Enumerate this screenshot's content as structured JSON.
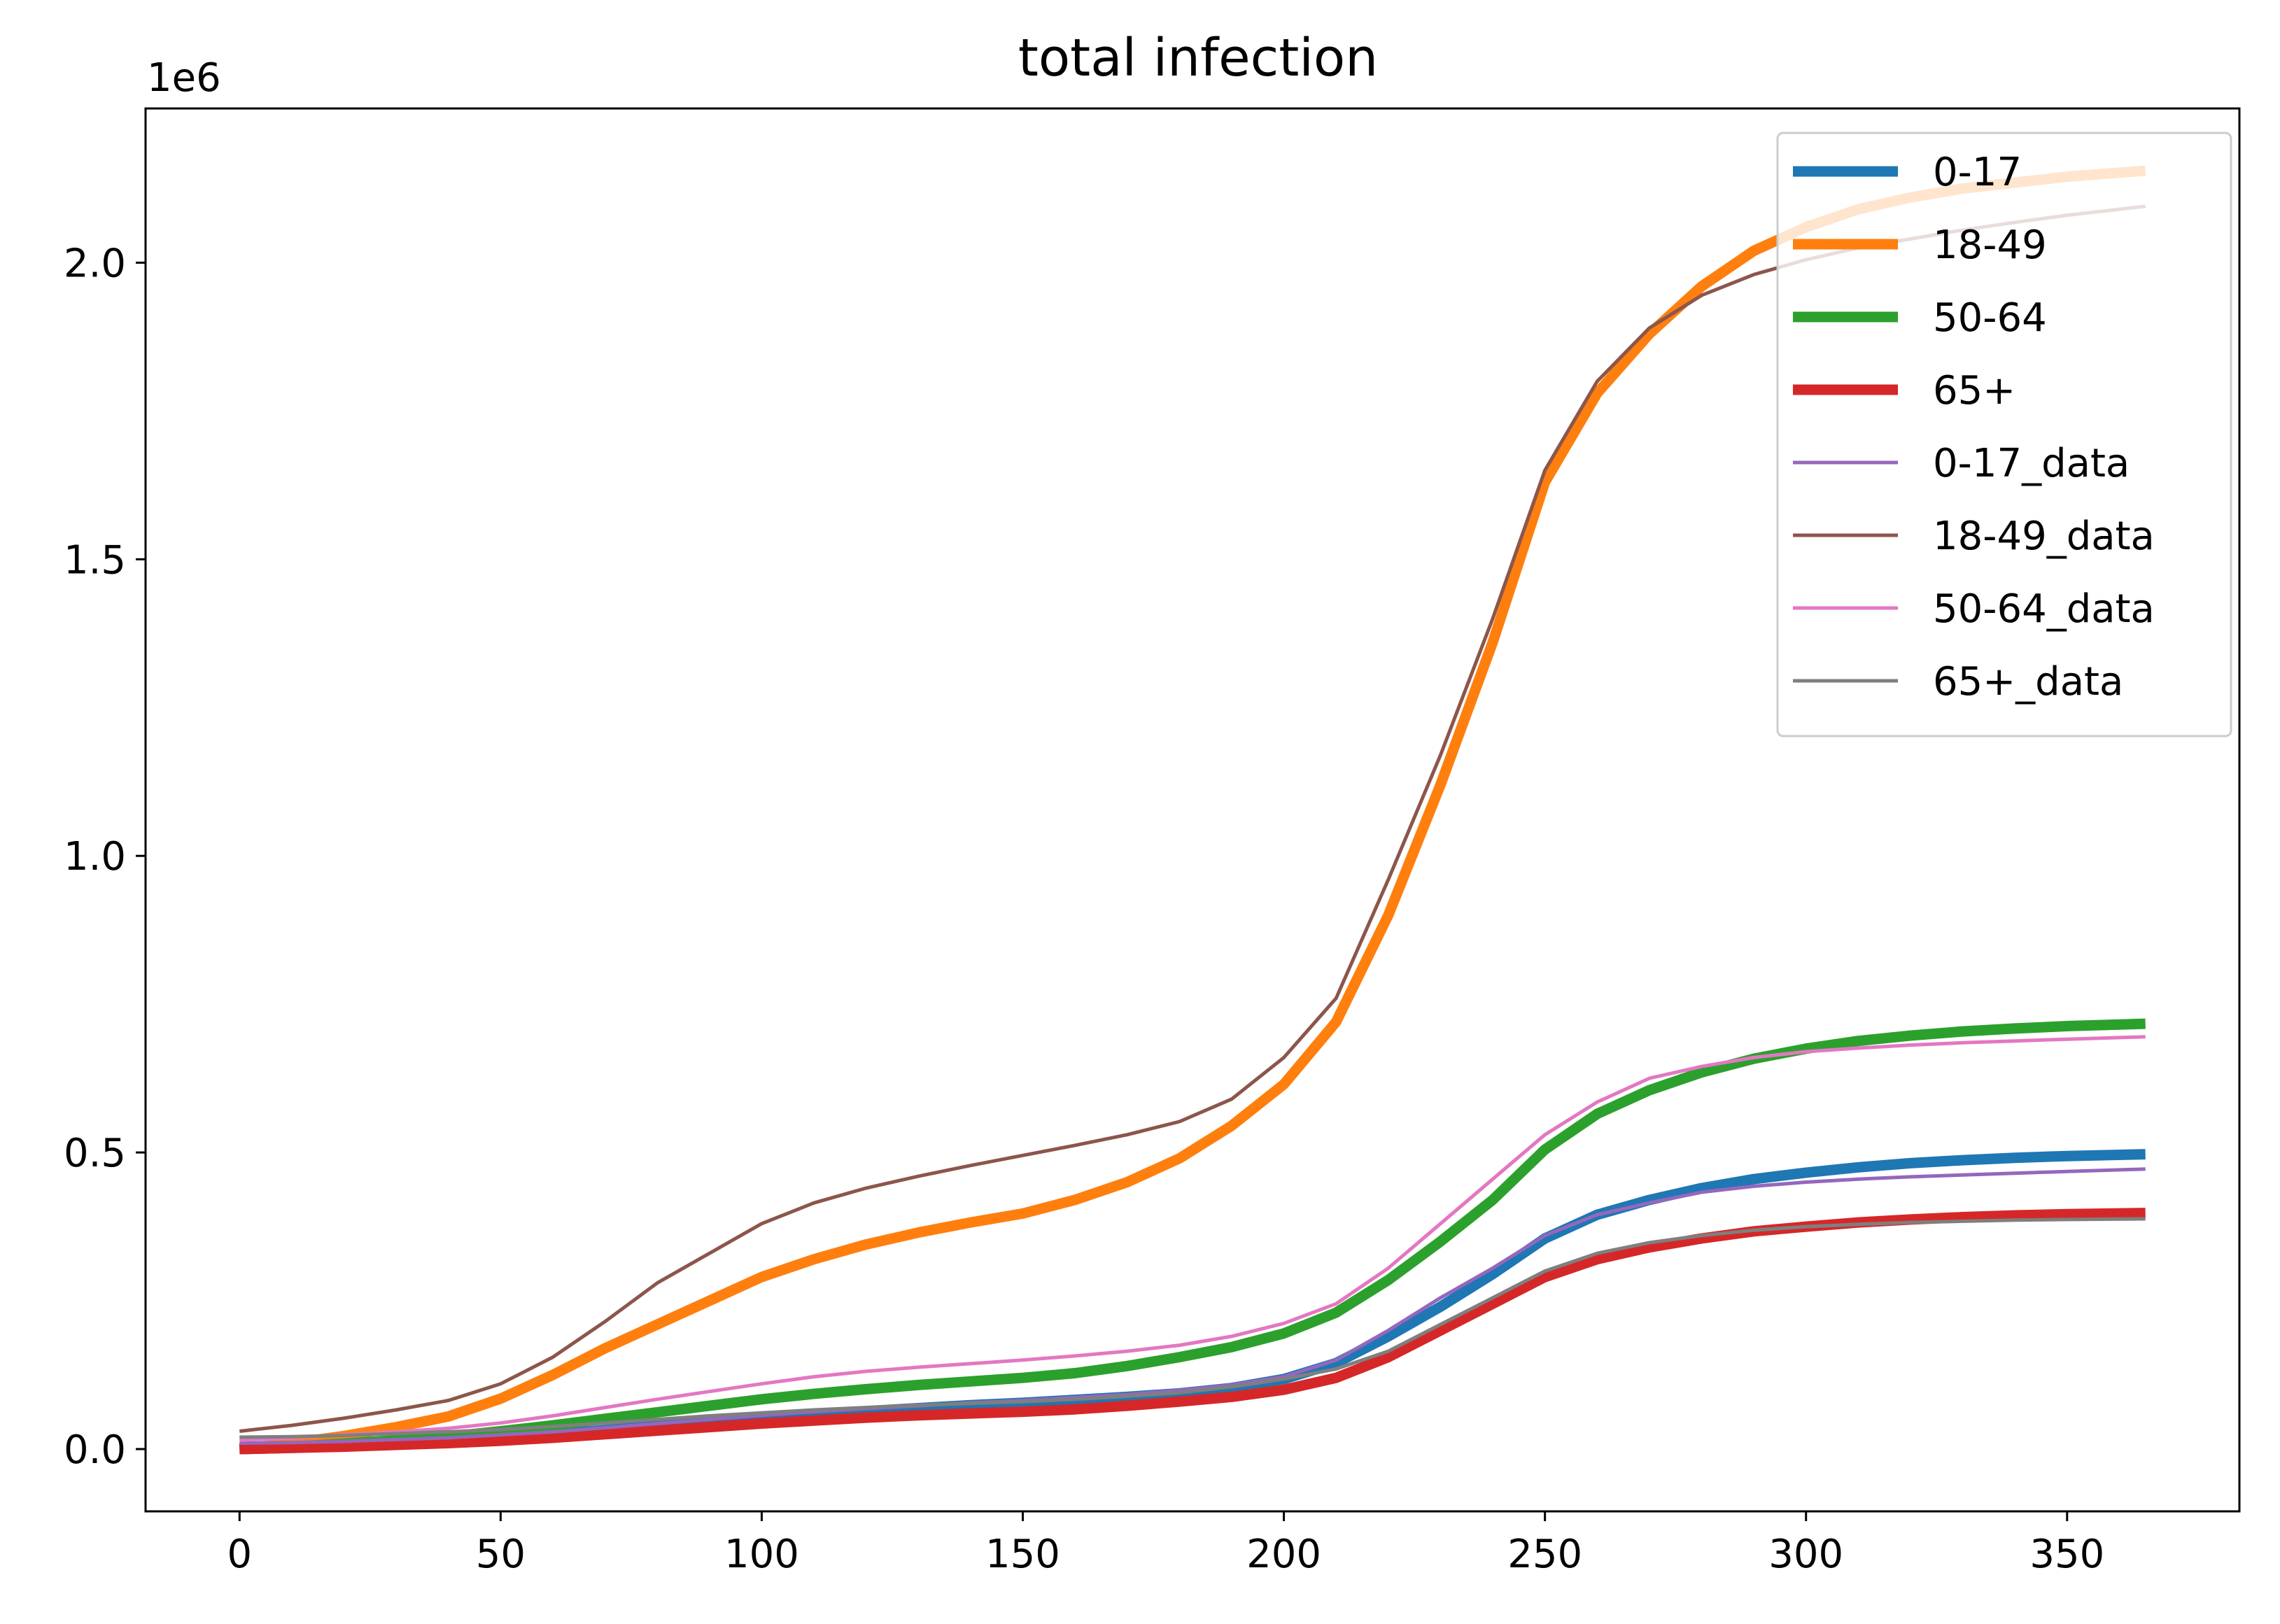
{
  "chart_data": {
    "type": "line",
    "title": "total infection",
    "xlabel": "",
    "ylabel": "",
    "y_scale_label": "1e6",
    "xlim": [
      -18,
      383
    ],
    "ylim": [
      -105000,
      2260000
    ],
    "x_ticks": [
      0,
      50,
      100,
      150,
      200,
      250,
      300,
      350
    ],
    "x_tick_labels": [
      "0",
      "50",
      "100",
      "150",
      "200",
      "250",
      "300",
      "350"
    ],
    "y_ticks": [
      0,
      500000,
      1000000,
      1500000,
      2000000
    ],
    "y_tick_labels": [
      "0.0",
      "0.5",
      "1.0",
      "1.5",
      "2.0"
    ],
    "grid": false,
    "legend_position": "top-right",
    "x": [
      0,
      10,
      20,
      30,
      40,
      50,
      60,
      70,
      80,
      90,
      100,
      110,
      120,
      130,
      140,
      150,
      160,
      170,
      180,
      190,
      200,
      210,
      220,
      230,
      240,
      250,
      260,
      270,
      280,
      290,
      300,
      310,
      320,
      330,
      340,
      350,
      365
    ],
    "series": [
      {
        "name": "0-17",
        "color": "#1f77b4",
        "style": "thick",
        "values": [
          0,
          2000,
          5000,
          9000,
          13000,
          19000,
          25000,
          32000,
          39000,
          46000,
          53000,
          59000,
          64000,
          69000,
          74000,
          78000,
          83000,
          88000,
          94000,
          103000,
          118000,
          145000,
          190000,
          240000,
          295000,
          355000,
          395000,
          420000,
          440000,
          455000,
          466000,
          475000,
          482000,
          487000,
          491000,
          494000,
          497000
        ]
      },
      {
        "name": "18-49",
        "color": "#ff7f0e",
        "style": "thick",
        "values": [
          0,
          10000,
          22000,
          37000,
          55000,
          85000,
          125000,
          170000,
          210000,
          250000,
          290000,
          320000,
          345000,
          365000,
          382000,
          397000,
          420000,
          450000,
          490000,
          545000,
          615000,
          720000,
          900000,
          1120000,
          1360000,
          1630000,
          1780000,
          1880000,
          1960000,
          2020000,
          2060000,
          2090000,
          2110000,
          2125000,
          2135000,
          2145000,
          2155000
        ]
      },
      {
        "name": "50-64",
        "color": "#2ca02c",
        "style": "thick",
        "values": [
          0,
          4000,
          9000,
          15000,
          21000,
          30000,
          40000,
          51000,
          62000,
          73000,
          84000,
          93000,
          101000,
          108000,
          114000,
          120000,
          128000,
          140000,
          155000,
          172000,
          195000,
          230000,
          285000,
          350000,
          420000,
          505000,
          565000,
          605000,
          635000,
          658000,
          675000,
          688000,
          697000,
          704000,
          709000,
          713000,
          717000
        ]
      },
      {
        "name": "65+",
        "color": "#d62728",
        "style": "thick",
        "values": [
          0,
          2000,
          4000,
          7000,
          10000,
          14000,
          19000,
          25000,
          31000,
          37000,
          43000,
          48000,
          53000,
          57000,
          60000,
          63000,
          67000,
          73000,
          80000,
          88000,
          100000,
          120000,
          155000,
          200000,
          245000,
          290000,
          320000,
          340000,
          355000,
          367000,
          375000,
          382000,
          387000,
          391000,
          394000,
          396000,
          398000
        ]
      },
      {
        "name": "0-17_data",
        "color": "#9467bd",
        "style": "thin",
        "values": [
          10000,
          11000,
          13000,
          16000,
          19000,
          24000,
          29000,
          36000,
          43000,
          50000,
          57000,
          63000,
          68000,
          73000,
          78000,
          82000,
          87000,
          92000,
          99000,
          108000,
          122000,
          150000,
          200000,
          255000,
          305000,
          360000,
          395000,
          415000,
          433000,
          443000,
          450000,
          455000,
          459000,
          462000,
          465000,
          468000,
          472000
        ]
      },
      {
        "name": "18-49_data",
        "color": "#8c564b",
        "style": "thin",
        "values": [
          30000,
          40000,
          52000,
          66000,
          82000,
          110000,
          155000,
          215000,
          280000,
          330000,
          380000,
          415000,
          440000,
          460000,
          478000,
          495000,
          512000,
          530000,
          552000,
          590000,
          660000,
          760000,
          960000,
          1170000,
          1400000,
          1650000,
          1800000,
          1890000,
          1945000,
          1980000,
          2005000,
          2025000,
          2040000,
          2055000,
          2068000,
          2080000,
          2095000
        ]
      },
      {
        "name": "50-64_data",
        "color": "#e377c2",
        "style": "thin",
        "values": [
          15000,
          19000,
          24000,
          29000,
          35000,
          44000,
          56000,
          70000,
          84000,
          97000,
          110000,
          122000,
          131000,
          138000,
          144000,
          150000,
          157000,
          165000,
          175000,
          190000,
          212000,
          245000,
          305000,
          380000,
          455000,
          530000,
          585000,
          625000,
          645000,
          660000,
          670000,
          676000,
          681000,
          685000,
          688000,
          691000,
          695000
        ]
      },
      {
        "name": "65+_data",
        "color": "#7f7f7f",
        "style": "thin",
        "values": [
          20000,
          21000,
          23000,
          26000,
          29000,
          33000,
          38000,
          44000,
          50000,
          56000,
          61000,
          66000,
          70000,
          74000,
          77000,
          80000,
          84000,
          89000,
          95000,
          105000,
          118000,
          135000,
          165000,
          210000,
          255000,
          300000,
          330000,
          348000,
          360000,
          369000,
          375000,
          379000,
          382000,
          384000,
          386000,
          387000,
          388000
        ]
      }
    ]
  }
}
